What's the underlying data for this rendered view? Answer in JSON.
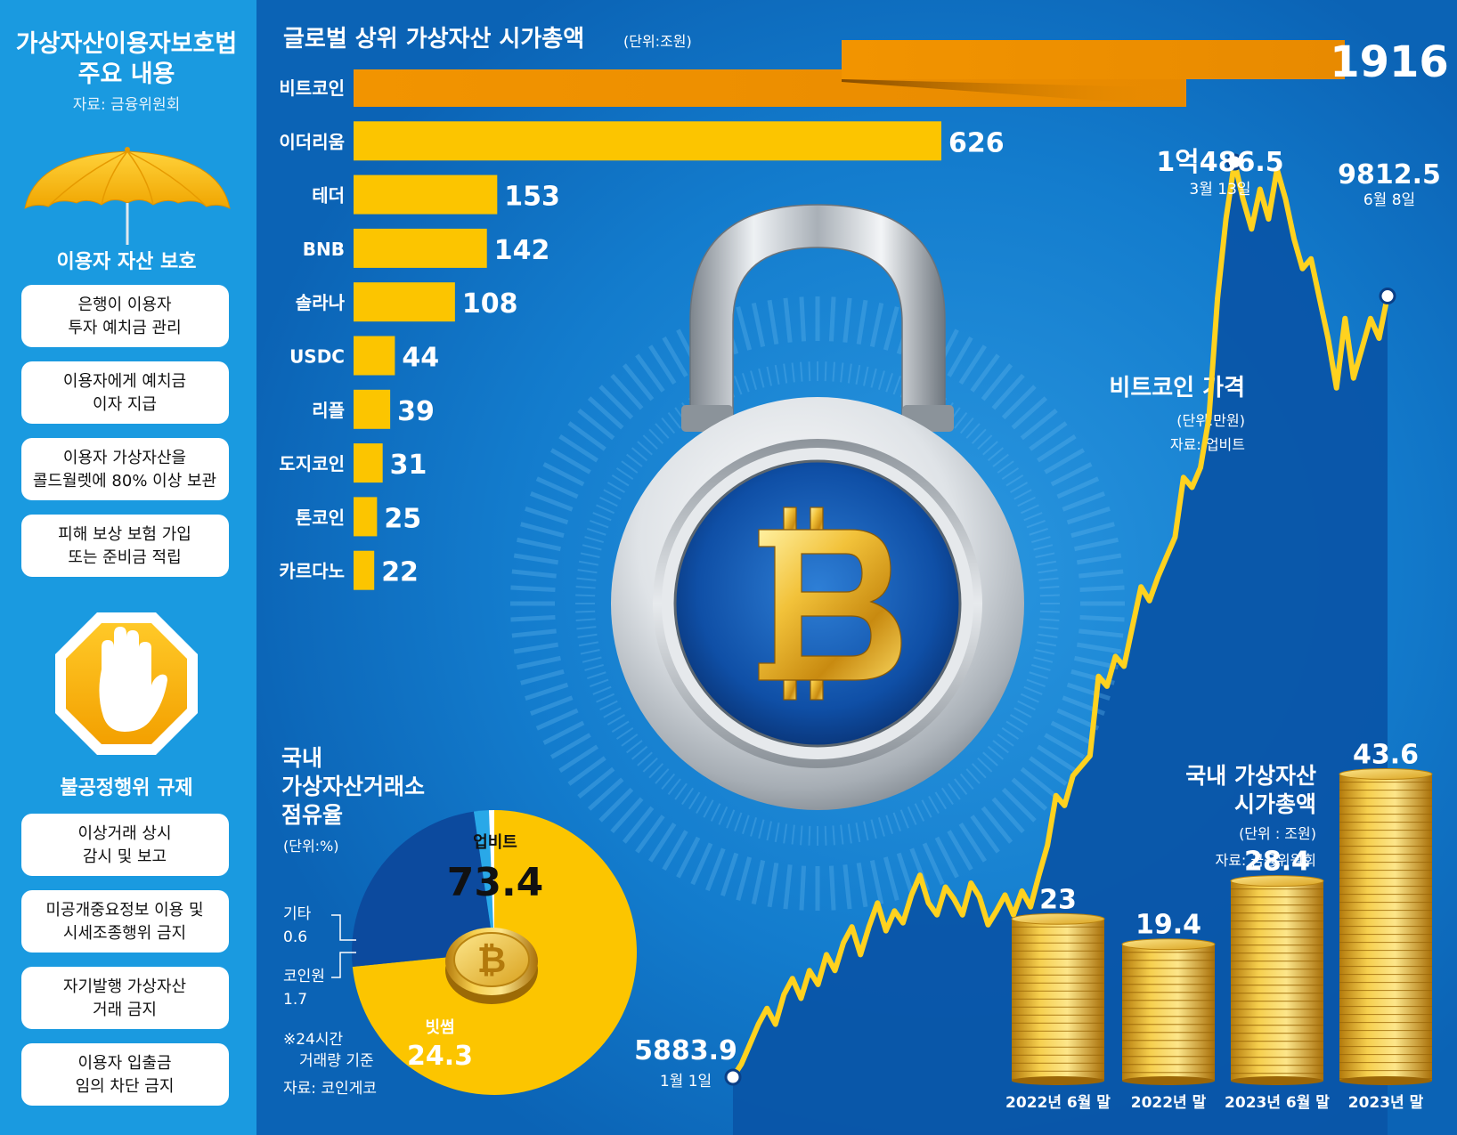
{
  "sidebar": {
    "title": [
      "가상자산이용자보호법",
      "주요 내용"
    ],
    "source": "자료: 금융위원회",
    "section1_title": "이용자 자산 보호",
    "section1_items": [
      [
        "은행이 이용자",
        "투자 예치금 관리"
      ],
      [
        "이용자에게 예치금",
        "이자 지급"
      ],
      [
        "이용자 가상자산을",
        "콜드월렛에 80% 이상 보관"
      ],
      [
        "피해 보상 보험 가입",
        "또는 준비금 적립"
      ]
    ],
    "section2_title": "불공정행위 규제",
    "section2_items": [
      [
        "이상거래 상시",
        "감시 및 보고"
      ],
      [
        "미공개중요정보 이용 및",
        "시세조종행위 금지"
      ],
      [
        "자기발행 가상자산",
        "거래 금지"
      ],
      [
        "이용자 입출금",
        "임의 차단 금지"
      ]
    ],
    "icons": [
      "umbrella-icon",
      "stop-hand-icon"
    ]
  },
  "colors": {
    "sidebar_bg": "#1a9ae0",
    "main_bg": "#0f77c9",
    "dark_blue": "#0a55a8",
    "bar": "#fcc500",
    "bitcoin_bar": "#f29400",
    "pie_bithumb": "#0c4a9e",
    "pie_coinone": "#29a8e8"
  },
  "chart_data": [
    {
      "type": "bar",
      "orientation": "horizontal",
      "title": "글로벌 상위 가상자산 시가총액",
      "unit": "(단위:조원)",
      "categories": [
        "비트코인",
        "이더리움",
        "테더",
        "BNB",
        "솔라나",
        "USDC",
        "리플",
        "도지코인",
        "톤코인",
        "카르다노"
      ],
      "values": [
        1916,
        626,
        153,
        142,
        108,
        44,
        39,
        31,
        25,
        22
      ],
      "value_labels": [
        "1916",
        "626",
        "153",
        "142",
        "108",
        "44",
        "39",
        "31",
        "25",
        "22"
      ],
      "broken_axis_for_first_bar": true
    },
    {
      "type": "line",
      "title": "비트코인 가격",
      "unit": "(단위:만원)",
      "source": "자료: 업비트",
      "x_range": [
        "1월 1일",
        "6월 8일"
      ],
      "annotations": [
        {
          "value_label": "5883.9",
          "date": "1월 1일",
          "value": 5883.9
        },
        {
          "value_label": "1억486.5",
          "date": "3월 13일",
          "value": 10486.5
        },
        {
          "value_label": "9812.5",
          "date": "6월 8일",
          "value": 9812.5
        }
      ],
      "values": [
        5883.9,
        5950,
        6050,
        6150,
        6230,
        6150,
        6300,
        6380,
        6280,
        6420,
        6350,
        6500,
        6420,
        6560,
        6640,
        6500,
        6640,
        6760,
        6620,
        6720,
        6660,
        6800,
        6900,
        6760,
        6700,
        6840,
        6780,
        6700,
        6860,
        6790,
        6650,
        6720,
        6800,
        6700,
        6820,
        6740,
        6900,
        7050,
        7300,
        7250,
        7400,
        7450,
        7500,
        7900,
        7850,
        8000,
        7950,
        8150,
        8350,
        8280,
        8400,
        8500,
        8600,
        8900,
        8850,
        8950,
        9200,
        9800,
        10200,
        10486.5,
        10300,
        10150,
        10350,
        10200,
        10450,
        10300,
        10100,
        9950,
        10000,
        9800,
        9600,
        9350,
        9700,
        9400,
        9550,
        9700,
        9600,
        9812.5
      ]
    },
    {
      "type": "pie",
      "title": [
        "국내",
        "가상자산거래소",
        "점유율"
      ],
      "unit": "(단위:%)",
      "labels": [
        "업비트",
        "빗썸",
        "코인원",
        "기타"
      ],
      "values": [
        73.4,
        24.3,
        1.7,
        0.6
      ],
      "value_labels": [
        "73.4",
        "24.3",
        "1.7",
        "0.6"
      ],
      "notes": [
        "※24시간",
        "거래량 기준"
      ],
      "source": "자료: 코인게코"
    },
    {
      "type": "bar",
      "style": "coin-stacks",
      "title": [
        "국내 가상자산",
        "시가총액"
      ],
      "unit": "(단위 : 조원)",
      "source": "자료: 금융위원회",
      "categories": [
        "2022년 6월 말",
        "2022년 말",
        "2023년 6월 말",
        "2023년 말"
      ],
      "values": [
        23,
        19.4,
        28.4,
        43.6
      ],
      "value_labels": [
        "23",
        "19.4",
        "28.4",
        "43.6"
      ]
    }
  ],
  "center_icon": "padlock-bitcoin-icon"
}
